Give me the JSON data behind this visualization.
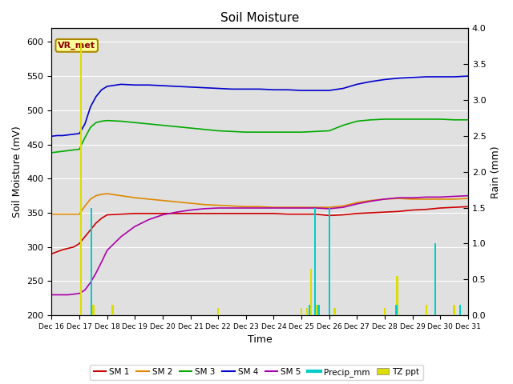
{
  "title": "Soil Moisture",
  "xlabel": "Time",
  "ylabel_left": "Soil Moisture (mV)",
  "ylabel_right": "Rain (mm)",
  "ylim_left": [
    200,
    620
  ],
  "ylim_right": [
    0.0,
    4.0
  ],
  "station_label": "VR_met",
  "x_start": 16,
  "x_end": 31,
  "x_ticks": [
    16,
    17,
    18,
    19,
    20,
    21,
    22,
    23,
    24,
    25,
    26,
    27,
    28,
    29,
    30,
    31
  ],
  "x_tick_labels": [
    "Dec 16",
    "Dec 17",
    "Dec 18",
    "Dec 19",
    "Dec 20",
    "Dec 21",
    "Dec 22",
    "Dec 23",
    "Dec 24",
    "Dec 25",
    "Dec 26",
    "Dec 27",
    "Dec 28",
    "Dec 29",
    "Dec 30",
    "Dec 31"
  ],
  "sm1_x": [
    16,
    16.2,
    16.4,
    16.6,
    16.8,
    17,
    17.2,
    17.4,
    17.6,
    17.8,
    18,
    18.5,
    19,
    19.5,
    20,
    20.5,
    21,
    21.5,
    22,
    22.5,
    23,
    23.5,
    24,
    24.5,
    25,
    25.5,
    26,
    26.5,
    27,
    27.5,
    28,
    28.5,
    29,
    29.5,
    30,
    30.5,
    31
  ],
  "sm1_y": [
    290,
    293,
    296,
    298,
    300,
    305,
    315,
    325,
    335,
    342,
    347,
    348,
    349,
    349,
    349,
    349,
    349,
    349,
    349,
    349,
    349,
    349,
    349,
    348,
    348,
    348,
    346,
    347,
    349,
    350,
    351,
    352,
    354,
    355,
    357,
    358,
    359
  ],
  "sm2_x": [
    16,
    16.2,
    16.4,
    16.6,
    16.8,
    17,
    17.2,
    17.4,
    17.6,
    17.8,
    18,
    18.5,
    19,
    19.5,
    20,
    20.5,
    21,
    21.5,
    22,
    22.5,
    23,
    23.5,
    24,
    24.5,
    25,
    25.5,
    26,
    26.5,
    27,
    27.5,
    28,
    28.5,
    29,
    29.5,
    30,
    30.5,
    31
  ],
  "sm2_y": [
    348,
    348,
    348,
    348,
    348,
    348,
    360,
    370,
    375,
    377,
    378,
    375,
    372,
    370,
    368,
    366,
    364,
    362,
    361,
    360,
    359,
    359,
    358,
    358,
    358,
    358,
    358,
    360,
    365,
    368,
    370,
    371,
    370,
    370,
    370,
    370,
    371
  ],
  "sm3_x": [
    16,
    16.2,
    16.4,
    16.6,
    16.8,
    17,
    17.2,
    17.4,
    17.6,
    17.8,
    18,
    18.5,
    19,
    19.5,
    20,
    20.5,
    21,
    21.5,
    22,
    22.5,
    23,
    23.5,
    24,
    24.5,
    25,
    25.5,
    26,
    26.5,
    27,
    27.5,
    28,
    28.5,
    29,
    29.5,
    30,
    30.5,
    31
  ],
  "sm3_y": [
    438,
    439,
    440,
    441,
    442,
    443,
    460,
    475,
    482,
    484,
    485,
    484,
    482,
    480,
    478,
    476,
    474,
    472,
    470,
    469,
    468,
    468,
    468,
    468,
    468,
    469,
    470,
    478,
    484,
    486,
    487,
    487,
    487,
    487,
    487,
    486,
    486
  ],
  "sm4_x": [
    16,
    16.2,
    16.4,
    16.6,
    16.8,
    17,
    17.2,
    17.4,
    17.6,
    17.8,
    18,
    18.5,
    19,
    19.5,
    20,
    20.5,
    21,
    21.5,
    22,
    22.5,
    23,
    23.5,
    24,
    24.5,
    25,
    25.5,
    26,
    26.5,
    27,
    27.5,
    28,
    28.5,
    29,
    29.5,
    30,
    30.5,
    31
  ],
  "sm4_y": [
    462,
    463,
    463,
    464,
    465,
    466,
    480,
    505,
    520,
    530,
    535,
    538,
    537,
    537,
    536,
    535,
    534,
    533,
    532,
    531,
    531,
    531,
    530,
    530,
    529,
    529,
    529,
    532,
    538,
    542,
    545,
    547,
    548,
    549,
    549,
    549,
    550
  ],
  "sm5_x": [
    16,
    16.2,
    16.4,
    16.6,
    16.8,
    17,
    17.2,
    17.4,
    17.6,
    17.8,
    18,
    18.5,
    19,
    19.5,
    20,
    20.5,
    21,
    21.5,
    22,
    22.5,
    23,
    23.5,
    24,
    24.5,
    25,
    25.5,
    26,
    26.5,
    27,
    27.5,
    28,
    28.5,
    29,
    29.5,
    30,
    30.5,
    31
  ],
  "sm5_y": [
    230,
    230,
    230,
    230,
    231,
    232,
    237,
    248,
    262,
    278,
    295,
    315,
    330,
    340,
    347,
    351,
    354,
    356,
    357,
    357,
    357,
    357,
    357,
    357,
    357,
    357,
    356,
    358,
    363,
    367,
    370,
    372,
    372,
    373,
    373,
    374,
    375
  ],
  "tz_ppt_x": [
    17.05,
    17.5,
    18.2,
    22.0,
    25.0,
    25.2,
    25.35,
    25.55,
    26.2,
    28.0,
    28.45,
    29.5,
    30.5
  ],
  "tz_ppt_mm": [
    3.8,
    0.15,
    0.15,
    0.1,
    0.1,
    0.1,
    0.65,
    0.15,
    0.1,
    0.1,
    0.55,
    0.15,
    0.15
  ],
  "precip_x": [
    17.42,
    25.28,
    25.48,
    25.62,
    26.02,
    28.42,
    29.82,
    30.72
  ],
  "precip_mm": [
    1.5,
    0.15,
    1.5,
    0.15,
    1.5,
    0.15,
    1.0,
    0.15
  ],
  "colors": {
    "sm1": "#cc0000",
    "sm2": "#dd8800",
    "sm3": "#00aa00",
    "sm4": "#0000cc",
    "sm5": "#aa00aa",
    "precip": "#00cccc",
    "tz_ppt": "#dddd00",
    "background": "#e0e0e0"
  }
}
